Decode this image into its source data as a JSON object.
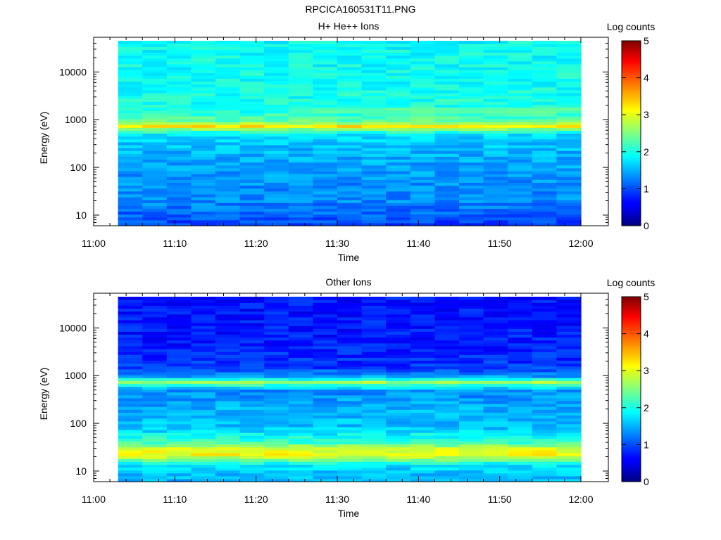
{
  "figure_title": "RPCICA160531T11.PNG",
  "chart_data": [
    {
      "type": "heatmap",
      "title": "H+ He++ Ions",
      "xlabel": "Time",
      "ylabel": "Energy (eV)",
      "x_ticks": [
        "11:00",
        "11:10",
        "11:20",
        "11:30",
        "11:40",
        "11:50",
        "12:00"
      ],
      "x_range": [
        "11:00",
        "12:00"
      ],
      "data_start": "11:03",
      "y_scale": "log",
      "y_range": [
        6,
        45000
      ],
      "y_ticks": [
        10,
        100,
        1000,
        10000
      ],
      "y_tick_labels": [
        "10",
        "100",
        "1000",
        "10000"
      ],
      "colorbar": {
        "label": "Log counts",
        "range": [
          0,
          5
        ],
        "ticks": [
          "0",
          "1",
          "2",
          "3",
          "4",
          "5"
        ]
      },
      "energy_profile": [
        {
          "energy": 6,
          "value": 0.9
        },
        {
          "energy": 10,
          "value": 1.1
        },
        {
          "energy": 20,
          "value": 1.3
        },
        {
          "energy": 40,
          "value": 1.3
        },
        {
          "energy": 80,
          "value": 1.4
        },
        {
          "energy": 200,
          "value": 1.5
        },
        {
          "energy": 500,
          "value": 1.7
        },
        {
          "energy": 650,
          "value": 2.6
        },
        {
          "energy": 750,
          "value": 3.3
        },
        {
          "energy": 900,
          "value": 2.4
        },
        {
          "energy": 1500,
          "value": 2.0
        },
        {
          "energy": 5000,
          "value": 1.95
        },
        {
          "energy": 45000,
          "value": 1.9
        }
      ],
      "secondary_band": {
        "energy": 1550,
        "value": 2.3,
        "from": "11:28"
      }
    },
    {
      "type": "heatmap",
      "title": "Other Ions",
      "xlabel": "Time",
      "ylabel": "Energy (eV)",
      "x_ticks": [
        "11:00",
        "11:10",
        "11:20",
        "11:30",
        "11:40",
        "11:50",
        "12:00"
      ],
      "x_range": [
        "11:00",
        "12:00"
      ],
      "data_start": "11:03",
      "y_scale": "log",
      "y_range": [
        6,
        45000
      ],
      "y_ticks": [
        10,
        100,
        1000,
        10000
      ],
      "y_tick_labels": [
        "10",
        "100",
        "1000",
        "10000"
      ],
      "colorbar": {
        "label": "Log counts",
        "range": [
          0,
          5
        ],
        "ticks": [
          "0",
          "1",
          "2",
          "3",
          "4",
          "5"
        ]
      },
      "energy_profile": [
        {
          "energy": 6,
          "value": 1.5
        },
        {
          "energy": 10,
          "value": 1.6
        },
        {
          "energy": 14,
          "value": 1.8
        },
        {
          "energy": 17,
          "value": 2.4
        },
        {
          "energy": 22,
          "value": 3.1
        },
        {
          "energy": 28,
          "value": 3.0
        },
        {
          "energy": 40,
          "value": 2.2
        },
        {
          "energy": 80,
          "value": 1.6
        },
        {
          "energy": 200,
          "value": 1.5
        },
        {
          "energy": 500,
          "value": 1.3
        },
        {
          "energy": 680,
          "value": 2.3
        },
        {
          "energy": 760,
          "value": 2.8
        },
        {
          "energy": 900,
          "value": 1.5
        },
        {
          "energy": 1500,
          "value": 0.9
        },
        {
          "energy": 5000,
          "value": 0.75
        },
        {
          "energy": 45000,
          "value": 0.7
        }
      ]
    }
  ]
}
